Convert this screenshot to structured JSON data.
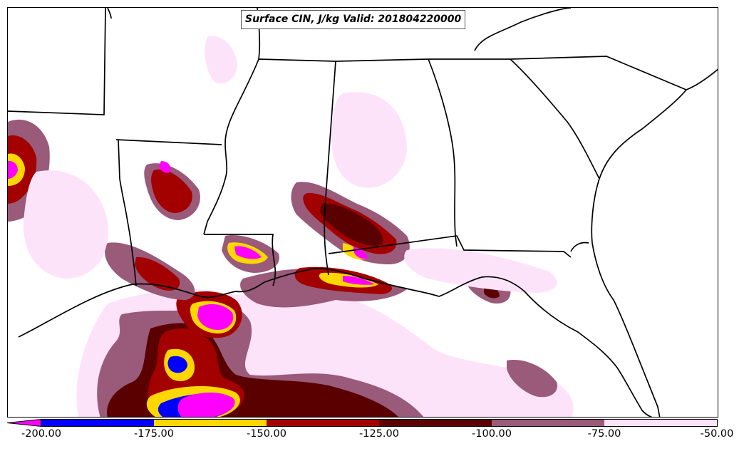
{
  "map": {
    "title": "Surface CIN, J/kg Valid: 201804220000",
    "variable": "Surface CIN",
    "units": "J/kg",
    "valid_time": "201804220000",
    "region": "Southeastern United States and Gulf of Mexico"
  },
  "colorbar": {
    "ticks": [
      "-200.00",
      "-175.00",
      "-150.00",
      "-125.00",
      "-100.00",
      "-75.00",
      "-50.00"
    ],
    "bins": [
      {
        "range": [
          -225,
          -200
        ],
        "color": "#ff00ff"
      },
      {
        "range": [
          -200,
          -175
        ],
        "color": "#0000ff"
      },
      {
        "range": [
          -175,
          -150
        ],
        "color": "#ffd700"
      },
      {
        "range": [
          -150,
          -125
        ],
        "color": "#a30000"
      },
      {
        "range": [
          -125,
          -100
        ],
        "color": "#5a0000"
      },
      {
        "range": [
          -100,
          -75
        ],
        "color": "#9a5a7a"
      },
      {
        "range": [
          -75,
          -50
        ],
        "color": "#fde3fa"
      }
    ],
    "extend": "min"
  },
  "colors": {
    "magenta": "#ff00ff",
    "blue": "#0000ff",
    "yellow": "#ffd700",
    "red": "#a30000",
    "dark_red": "#5a0000",
    "mauve": "#9a5a7a",
    "pale_pink": "#fde3fa",
    "outline": "#000000"
  }
}
